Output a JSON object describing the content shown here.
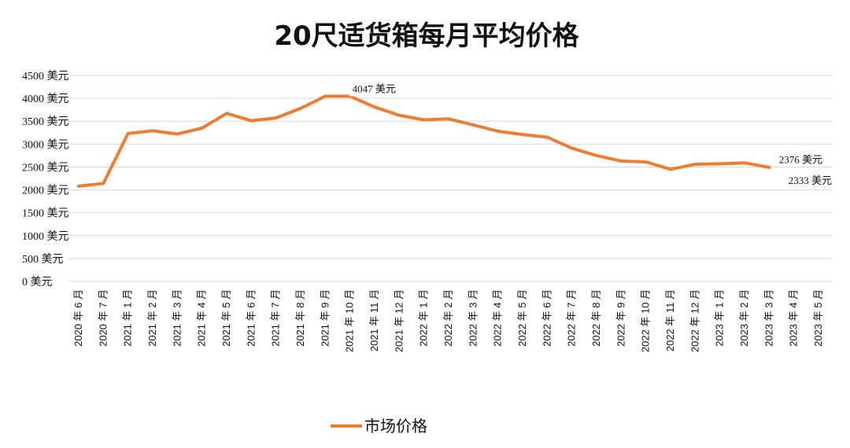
{
  "chart_data": {
    "type": "line",
    "title": "20尺适货箱每月平均价格",
    "xlabel": "",
    "ylabel": "",
    "ylim": [
      0,
      4500
    ],
    "yticks": [
      {
        "value": 0,
        "label": "0 美元"
      },
      {
        "value": 500,
        "label": "500 美元"
      },
      {
        "value": 1000,
        "label": "1000 美元"
      },
      {
        "value": 1500,
        "label": "1500 美元"
      },
      {
        "value": 2000,
        "label": "2000 美元"
      },
      {
        "value": 2500,
        "label": "2500 美元"
      },
      {
        "value": 3000,
        "label": "3000 美元"
      },
      {
        "value": 3500,
        "label": "3500 美元"
      },
      {
        "value": 4000,
        "label": "4000 美元"
      },
      {
        "value": 4500,
        "label": "4500 美元"
      }
    ],
    "categories": [
      "2020 年 6 月",
      "2020 年 7 月",
      "2021 年 1 月",
      "2021 年 2 月",
      "2021 年 3 月",
      "2021 年 4 月",
      "2021 年 5 月",
      "2021 年 6 月",
      "2021 年 7 月",
      "2021 年 8 月",
      "2021 年 9 月",
      "2021 年 10 月",
      "2021 年 11 月",
      "2021 年 12 月",
      "2022 年 1 月",
      "2022 年 2 月",
      "2022 年 3 月",
      "2022 年 4 月",
      "2022 年 5 月",
      "2022 年 6 月",
      "2022 年 7 月",
      "2022 年 8 月",
      "2022 年 9 月",
      "2022 年 10 月",
      "2022 年 11 月",
      "2022 年 12 月",
      "2023 年 1 月",
      "2023 年 2 月",
      "2023 年 3 月",
      "2023 年 4 月",
      "2023 年 5 月"
    ],
    "series": [
      {
        "name": "市场价格",
        "color": "#ed7d31",
        "values": [
          2080,
          2140,
          3230,
          3290,
          3220,
          3350,
          3670,
          3510,
          3570,
          3780,
          4047,
          4047,
          3810,
          3630,
          3530,
          3550,
          3420,
          3280,
          3210,
          3150,
          2910,
          2750,
          2630,
          2610,
          2450,
          2560,
          2570,
          2590,
          2490,
          null,
          null
        ]
      }
    ],
    "annotations": [
      {
        "text": "4047 美元",
        "category_index": 11,
        "value": 4047
      },
      {
        "text": "2376 美元",
        "category_index": 30,
        "value": 2376
      },
      {
        "text": "2333 美元",
        "category_index": 30,
        "value": 2333
      }
    ],
    "grid": true,
    "legend": "bottom"
  }
}
